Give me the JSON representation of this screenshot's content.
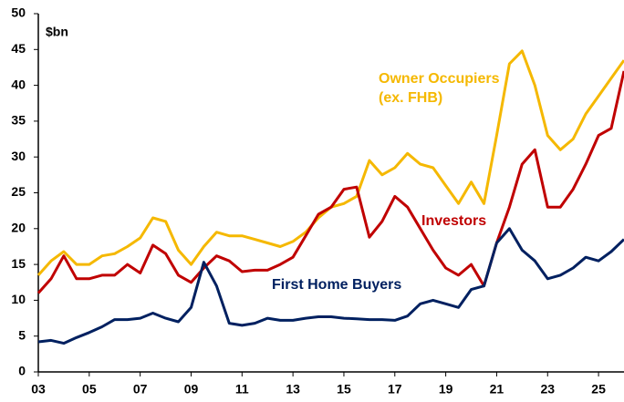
{
  "chart_data": {
    "type": "line",
    "y_label": "$bn",
    "annotations": [
      "(ex. FHB)"
    ],
    "x": [
      2003,
      2003.5,
      2004,
      2004.5,
      2005,
      2005.5,
      2006,
      2006.5,
      2007,
      2007.5,
      2008,
      2008.5,
      2009,
      2009.5,
      2010,
      2010.5,
      2011,
      2011.5,
      2012,
      2012.5,
      2013,
      2013.5,
      2014,
      2014.5,
      2015,
      2015.5,
      2016,
      2016.5,
      2017,
      2017.5,
      2018,
      2018.5,
      2019,
      2019.5,
      2020,
      2020.5,
      2021,
      2021.5,
      2022,
      2022.5,
      2023,
      2023.5,
      2024,
      2024.5,
      2025,
      2025.5,
      2026
    ],
    "series": [
      {
        "name": "Owner Occupiers",
        "color": "#f5b800",
        "values": [
          13.5,
          15.5,
          16.8,
          15,
          15,
          16.2,
          16.5,
          17.5,
          18.7,
          21.5,
          21,
          17,
          15,
          17.5,
          19.5,
          19,
          19,
          18.5,
          18,
          17.5,
          18.2,
          19.5,
          21.5,
          23,
          23.5,
          24.5,
          29.5,
          27.5,
          28.5,
          30.5,
          29,
          28.5,
          26,
          23.5,
          26.5,
          23.5,
          33,
          43,
          44.8,
          40,
          33,
          31,
          32.5,
          36,
          38.5,
          41,
          43.5
        ]
      },
      {
        "name": "Investors",
        "color": "#c00000",
        "values": [
          11,
          13,
          16.2,
          13,
          13,
          13.5,
          13.5,
          15,
          13.8,
          17.7,
          16.5,
          13.5,
          12.5,
          14.5,
          16.2,
          15.5,
          14,
          14.2,
          14.2,
          15,
          16,
          19,
          22,
          23,
          25.5,
          25.8,
          18.8,
          21,
          24.5,
          23,
          20,
          17,
          14.5,
          13.5,
          15,
          12,
          18,
          23,
          29,
          31,
          23,
          23,
          25.5,
          29,
          33,
          34,
          42
        ]
      },
      {
        "name": "First Home Buyers",
        "color": "#002060",
        "values": [
          4.2,
          4.4,
          4,
          4.8,
          5.5,
          6.3,
          7.3,
          7.3,
          7.5,
          8.2,
          7.5,
          7,
          9,
          15.3,
          12,
          6.8,
          6.5,
          6.8,
          7.5,
          7.2,
          7.2,
          7.5,
          7.7,
          7.7,
          7.5,
          7.4,
          7.3,
          7.3,
          7.2,
          7.8,
          9.5,
          10,
          9.5,
          9,
          11.5,
          12,
          18,
          20,
          17,
          15.5,
          13,
          13.5,
          14.5,
          16,
          15.5,
          16.8,
          18.5
        ]
      }
    ],
    "xlim": [
      2003,
      2026
    ],
    "xticks": [
      {
        "value": 2003,
        "label": "03"
      },
      {
        "value": 2005,
        "label": "05"
      },
      {
        "value": 2007,
        "label": "07"
      },
      {
        "value": 2009,
        "label": "09"
      },
      {
        "value": 2011,
        "label": "11"
      },
      {
        "value": 2013,
        "label": "13"
      },
      {
        "value": 2015,
        "label": "15"
      },
      {
        "value": 2017,
        "label": "17"
      },
      {
        "value": 2019,
        "label": "19"
      },
      {
        "value": 2021,
        "label": "21"
      },
      {
        "value": 2023,
        "label": "23"
      },
      {
        "value": 2025,
        "label": "25"
      }
    ],
    "ylim": [
      0,
      50
    ],
    "yticks": [
      0,
      5,
      10,
      15,
      20,
      25,
      30,
      35,
      40,
      45,
      50
    ],
    "grid": false
  }
}
